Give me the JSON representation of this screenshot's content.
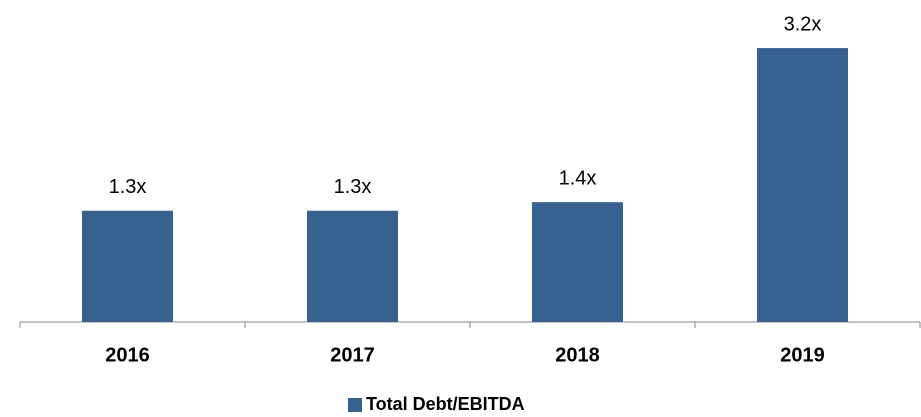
{
  "chart_data": {
    "type": "bar",
    "categories": [
      "2016",
      "2017",
      "2018",
      "2019"
    ],
    "series": [
      {
        "name": "Total Debt/EBITDA",
        "color": "#37618f",
        "values": [
          1.3,
          1.3,
          1.4,
          3.2
        ],
        "value_labels": [
          "1.3x",
          "1.3x",
          "1.4x",
          "3.2x"
        ]
      }
    ],
    "legend": "bottom"
  }
}
